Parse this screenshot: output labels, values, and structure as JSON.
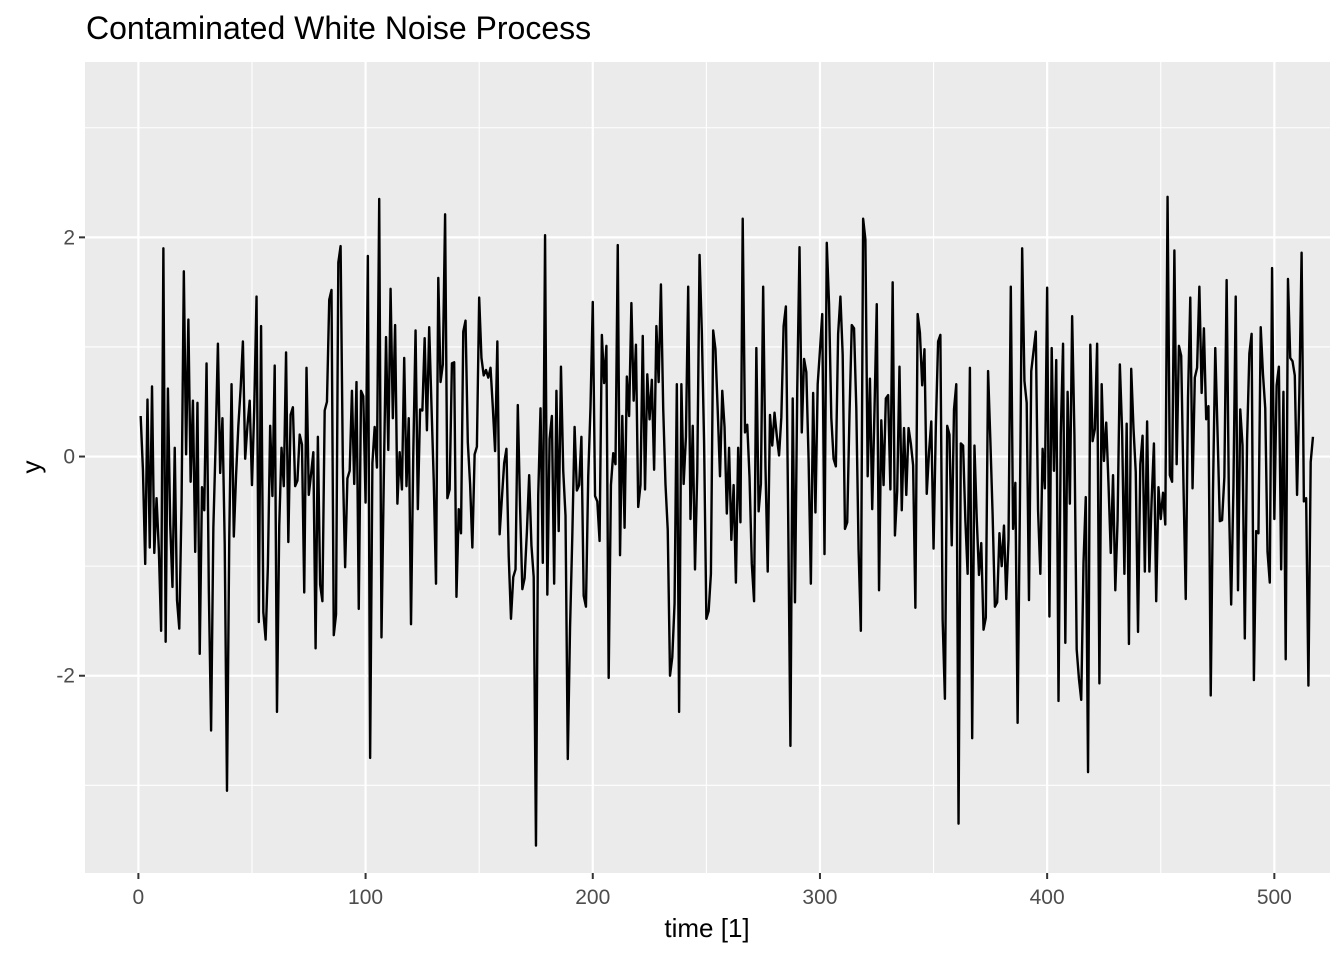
{
  "chart_data": {
    "type": "line",
    "title": "Contaminated White Noise Process",
    "xlabel": "time [1]",
    "ylabel": "y",
    "xlim": [
      -23.5,
      524.5
    ],
    "ylim": [
      -3.8,
      3.6
    ],
    "x_ticks": [
      0,
      100,
      200,
      300,
      400,
      500
    ],
    "x_tick_labels": [
      "0",
      "100",
      "200",
      "300",
      "400",
      "500"
    ],
    "y_ticks": [
      -2,
      0,
      2
    ],
    "y_tick_labels": [
      "-2",
      "0",
      "2"
    ],
    "x_minor_ticks": [
      50,
      150,
      250,
      350,
      450
    ],
    "y_minor_ticks": [
      -3,
      -1,
      1,
      3
    ],
    "grid": true,
    "legend": "none",
    "colors": {
      "panel_background": "#ebebeb",
      "grid_line": "#ffffff",
      "series_line": "#000000",
      "tick_label": "#4d4d4d"
    },
    "series": [
      {
        "x_start": 1,
        "x_step": 1,
        "values": [
          0.37,
          -0.12,
          -0.98,
          0.52,
          -0.83,
          0.64,
          -0.88,
          -0.38,
          -0.85,
          -1.59,
          1.9,
          -1.69,
          0.62,
          -0.62,
          -1.19,
          0.08,
          -1.31,
          -1.57,
          -0.42,
          1.69,
          0.02,
          1.25,
          -0.23,
          0.51,
          -0.87,
          0.49,
          -1.8,
          -0.28,
          -0.49,
          0.85,
          -1.21,
          -2.5,
          -0.65,
          0.12,
          1.03,
          -0.15,
          0.35,
          -0.8,
          -3.05,
          -0.74,
          0.66,
          -0.73,
          -0.17,
          0.28,
          0.62,
          1.05,
          -0.02,
          0.28,
          0.51,
          -0.26,
          0.45,
          1.46,
          -1.51,
          1.19,
          -1.42,
          -1.67,
          -1.0,
          0.28,
          -0.36,
          0.83,
          -2.33,
          -0.63,
          0.08,
          -0.27,
          0.95,
          -0.78,
          0.38,
          0.45,
          -0.27,
          -0.22,
          0.2,
          0.11,
          -1.24,
          0.81,
          -0.35,
          -0.16,
          0.04,
          -1.75,
          0.18,
          -1.17,
          -1.32,
          0.42,
          0.5,
          1.43,
          1.52,
          -1.63,
          -1.44,
          1.77,
          1.92,
          -0.09,
          -1.01,
          -0.2,
          -0.13,
          0.6,
          -0.25,
          0.68,
          -1.39,
          0.6,
          0.55,
          -0.42,
          1.83,
          -2.75,
          -0.06,
          0.27,
          -0.1,
          2.35,
          -1.65,
          -0.23,
          1.09,
          0.06,
          1.53,
          0.35,
          1.2,
          -0.43,
          0.04,
          -0.3,
          0.9,
          -0.27,
          0.35,
          -1.53,
          0.03,
          1.15,
          -0.48,
          0.43,
          0.42,
          1.08,
          0.24,
          1.18,
          0.47,
          -0.22,
          -1.16,
          1.63,
          0.68,
          0.84,
          2.21,
          -0.38,
          -0.3,
          0.85,
          0.86,
          -1.28,
          -0.48,
          -0.7,
          1.14,
          1.24,
          0.13,
          -0.25,
          -0.83,
          0.02,
          0.09,
          1.45,
          0.9,
          0.74,
          0.79,
          0.72,
          0.81,
          0.45,
          0.05,
          1.05,
          -0.71,
          -0.38,
          -0.06,
          0.07,
          -0.91,
          -1.48,
          -1.1,
          -1.03,
          0.47,
          -0.46,
          -1.21,
          -1.11,
          -0.69,
          -0.17,
          -0.81,
          -1.1,
          -3.55,
          -0.35,
          0.44,
          -0.97,
          2.02,
          -1.26,
          0.16,
          0.37,
          -1.16,
          0.6,
          -0.68,
          0.82,
          -0.13,
          -0.54,
          -2.76,
          -1.56,
          -0.72,
          0.27,
          -0.31,
          -0.26,
          0.18,
          -1.27,
          -1.37,
          -0.18,
          0.45,
          1.41,
          -0.36,
          -0.41,
          -0.77,
          1.11,
          0.67,
          1.01,
          -2.02,
          -0.26,
          0.03,
          -0.07,
          1.93,
          -0.9,
          0.37,
          -0.65,
          0.73,
          0.37,
          1.4,
          0.51,
          1.02,
          -0.46,
          -0.26,
          1.1,
          -0.3,
          0.75,
          0.34,
          0.7,
          -0.12,
          1.19,
          0.68,
          1.57,
          0.44,
          -0.25,
          -0.67,
          -2.0,
          -1.83,
          -1.34,
          0.66,
          -2.33,
          0.66,
          -0.25,
          0.18,
          1.55,
          -0.57,
          0.28,
          -1.03,
          -0.14,
          1.84,
          1.14,
          0.13,
          -1.48,
          -1.41,
          -1.07,
          1.15,
          0.98,
          0.42,
          -0.18,
          0.6,
          0.27,
          -0.52,
          0.08,
          -0.76,
          -0.26,
          -1.15,
          0.08,
          -0.6,
          2.17,
          0.22,
          0.29,
          -0.19,
          -0.98,
          -1.32,
          0.99,
          -0.5,
          -0.25,
          1.55,
          -0.08,
          -1.05,
          0.38,
          0.1,
          0.4,
          0.19,
          0.01,
          0.36,
          1.19,
          1.37,
          -0.52,
          -2.64,
          0.53,
          -1.33,
          0.61,
          1.91,
          0.22,
          0.89,
          0.77,
          -0.03,
          -1.16,
          0.58,
          -0.51,
          0.66,
          0.97,
          1.3,
          -0.89,
          1.95,
          1.39,
          0.35,
          -0.02,
          -0.09,
          1.12,
          1.46,
          0.93,
          -0.66,
          -0.6,
          0.38,
          1.2,
          1.17,
          0.44,
          -0.85,
          -1.59,
          2.17,
          1.98,
          -0.18,
          0.71,
          -0.48,
          0.42,
          1.39,
          -1.22,
          0.33,
          -0.26,
          0.53,
          0.56,
          -0.3,
          1.59,
          -0.72,
          -0.31,
          0.82,
          -0.49,
          0.26,
          -0.35,
          0.26,
          0.12,
          -0.08,
          -1.38,
          1.3,
          1.13,
          0.65,
          0.98,
          -0.34,
          0.04,
          0.32,
          -0.84,
          0.27,
          1.05,
          1.11,
          -1.49,
          -2.21,
          0.28,
          0.2,
          -0.81,
          0.43,
          0.66,
          -3.35,
          0.12,
          0.1,
          -0.58,
          -1.07,
          0.81,
          -2.57,
          0.1,
          -0.56,
          -1.08,
          -0.79,
          -1.58,
          -1.47,
          0.78,
          0.15,
          -0.53,
          -1.37,
          -1.33,
          -0.7,
          -1.0,
          -0.63,
          -1.3,
          -0.75,
          1.55,
          -0.66,
          -0.24,
          -2.43,
          -0.46,
          1.9,
          0.69,
          0.49,
          -1.31,
          0.78,
          0.96,
          1.14,
          -0.49,
          -1.07,
          0.07,
          -0.29,
          1.54,
          -1.46,
          0.99,
          -0.13,
          0.88,
          -2.23,
          0.21,
          1.03,
          -1.7,
          0.59,
          -0.43,
          1.28,
          0.2,
          -1.76,
          -2.03,
          -2.22,
          -0.97,
          -0.37,
          -2.88,
          1.02,
          0.14,
          0.25,
          1.03,
          -2.07,
          0.66,
          -0.04,
          0.31,
          -0.25,
          -0.88,
          -0.17,
          -1.22,
          -0.58,
          0.84,
          0.23,
          -1.07,
          0.3,
          -1.71,
          0.8,
          0.26,
          -0.14,
          -1.6,
          -0.07,
          0.19,
          -1.05,
          0.32,
          -1.05,
          -0.39,
          0.12,
          -1.32,
          -0.28,
          -0.57,
          -0.33,
          -0.62,
          2.37,
          -0.17,
          -0.23,
          1.88,
          -0.07,
          1.01,
          0.92,
          -0.25,
          -1.3,
          0.54,
          1.45,
          -0.29,
          0.72,
          0.81,
          1.55,
          0.58,
          1.17,
          0.34,
          0.46,
          -2.18,
          -0.31,
          0.99,
          0.22,
          -0.59,
          -0.58,
          -0.19,
          1.61,
          -0.4,
          -1.35,
          -0.28,
          1.46,
          -1.22,
          0.43,
          0.1,
          -1.66,
          0.15,
          0.94,
          1.12,
          -2.04,
          -0.68,
          -0.7,
          1.18,
          0.75,
          0.44,
          -0.87,
          -1.15,
          1.72,
          -0.57,
          0.65,
          0.82,
          -1.03,
          0.59,
          -1.85,
          1.62,
          0.9,
          0.87,
          0.74,
          -0.35,
          0.58,
          1.86,
          -0.41,
          -0.38,
          -2.09,
          -0.05,
          0.18
        ]
      }
    ]
  }
}
